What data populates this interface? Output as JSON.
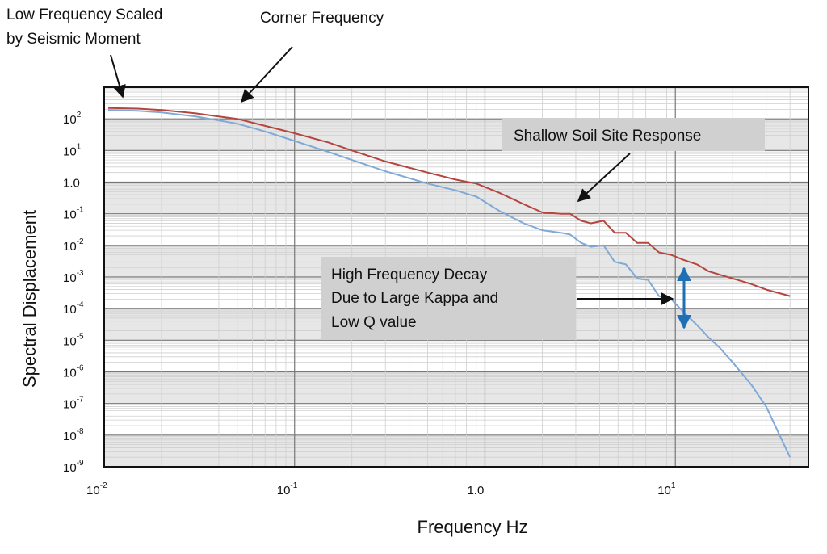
{
  "chart_data": {
    "type": "line",
    "xlabel": "Frequency Hz",
    "ylabel": "Spectral Displacement",
    "x_scale": "log",
    "y_scale": "log",
    "xlim": [
      0.01,
      50
    ],
    "ylim": [
      1e-09,
      1000
    ],
    "grid": true,
    "x_ticks": [
      {
        "value": 0.01,
        "base": "10",
        "exp": "-2"
      },
      {
        "value": 0.1,
        "base": "10",
        "exp": "-1"
      },
      {
        "value": 1,
        "base": "1.0",
        "exp": ""
      },
      {
        "value": 10,
        "base": "10",
        "exp": "1"
      }
    ],
    "y_ticks": [
      {
        "value": 100,
        "base": "10",
        "exp": "2"
      },
      {
        "value": 10,
        "base": "10",
        "exp": "1"
      },
      {
        "value": 1,
        "base": "1.0",
        "exp": ""
      },
      {
        "value": 0.1,
        "base": "10",
        "exp": "-1"
      },
      {
        "value": 0.01,
        "base": "10",
        "exp": "-2"
      },
      {
        "value": 0.001,
        "base": "10",
        "exp": "-3"
      },
      {
        "value": 0.0001,
        "base": "10",
        "exp": "-4"
      },
      {
        "value": 1e-05,
        "base": "10",
        "exp": "-5"
      },
      {
        "value": 1e-06,
        "base": "10",
        "exp": "-6"
      },
      {
        "value": 1e-07,
        "base": "10",
        "exp": "-7"
      },
      {
        "value": 1e-08,
        "base": "10",
        "exp": "-8"
      },
      {
        "value": 1e-09,
        "base": "10",
        "exp": "-9"
      }
    ],
    "series": [
      {
        "color": "#b5453f",
        "x": [
          0.0105,
          0.015,
          0.02,
          0.03,
          0.05,
          0.07,
          0.1,
          0.15,
          0.2,
          0.3,
          0.5,
          0.7,
          0.9,
          1.2,
          1.6,
          2.0,
          2.5,
          2.8,
          3.2,
          3.6,
          4.2,
          4.8,
          5.5,
          6.3,
          7.2,
          8.2,
          9.5,
          11,
          13,
          15,
          17,
          20,
          25,
          30,
          40
        ],
        "y": [
          220,
          210,
          190,
          150,
          100,
          60,
          35,
          18,
          10,
          4.5,
          2.0,
          1.2,
          0.9,
          0.45,
          0.2,
          0.11,
          0.1,
          0.1,
          0.06,
          0.05,
          0.06,
          0.025,
          0.025,
          0.012,
          0.012,
          0.006,
          0.005,
          0.0035,
          0.0025,
          0.0015,
          0.0012,
          0.0009,
          0.0006,
          0.0004,
          0.00025
        ]
      },
      {
        "color": "#7fa9d6",
        "x": [
          0.0105,
          0.015,
          0.02,
          0.03,
          0.05,
          0.07,
          0.1,
          0.15,
          0.2,
          0.3,
          0.5,
          0.7,
          0.9,
          1.2,
          1.6,
          2.0,
          2.5,
          2.8,
          3.2,
          3.6,
          4.2,
          4.8,
          5.5,
          6.3,
          7.2,
          8.2,
          9.5,
          11,
          13,
          15,
          17,
          20,
          25,
          30,
          40
        ],
        "y": [
          190,
          180,
          160,
          120,
          70,
          40,
          20,
          9,
          5,
          2.2,
          0.9,
          0.55,
          0.35,
          0.12,
          0.05,
          0.03,
          0.025,
          0.022,
          0.012,
          0.009,
          0.01,
          0.003,
          0.0025,
          0.0009,
          0.0008,
          0.00025,
          0.0002,
          8e-05,
          3e-05,
          1.2e-05,
          6e-06,
          2e-06,
          4e-07,
          8e-08,
          2e-09
        ]
      }
    ],
    "annotations": {
      "low_freq": [
        "Low Frequency Scaled",
        "by Seismic Moment"
      ],
      "corner": "Corner Frequency",
      "shallow": "Shallow Soil Site Response",
      "high_freq": [
        "High Frequency Decay",
        "Due to Large Kappa and",
        "Low Q value"
      ]
    },
    "colors": {
      "grid_major": "#777777",
      "grid_minor": "#cfcfcf",
      "band": "#e7e7e7",
      "annot_box": "#d0d0d0",
      "double_arrow": "#1f6fb5"
    }
  }
}
